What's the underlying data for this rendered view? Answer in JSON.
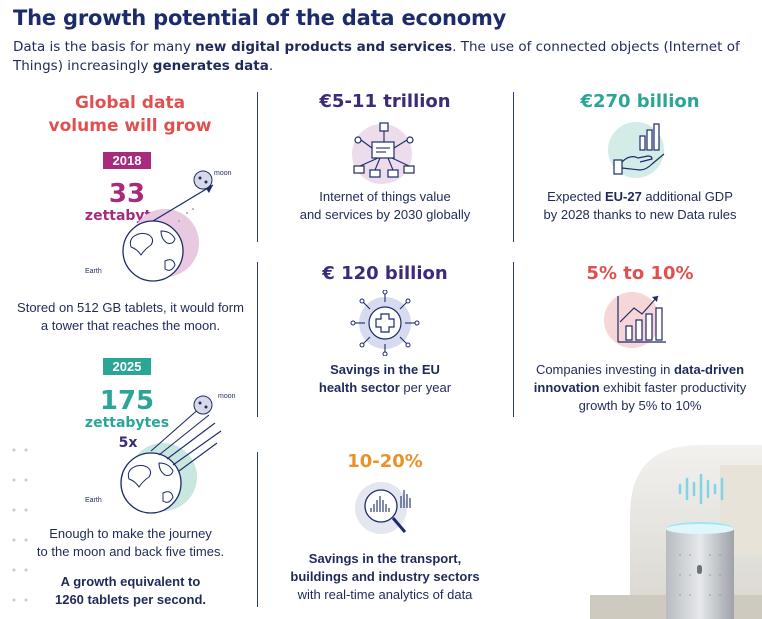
{
  "header": {
    "title": "The growth potential of the data economy",
    "intro_part1": "Data is the basis for many ",
    "intro_bold1": "new digital products and services",
    "intro_part2": ". The use of connected objects (Internet of Things) increasingly ",
    "intro_bold2": "generates data",
    "intro_part3": "."
  },
  "left": {
    "heading_line1": "Global data",
    "heading_line2": "volume will grow",
    "year1": "2018",
    "value1_number": "33",
    "value1_unit": "zettabytes",
    "moon_label": "moon",
    "earth_label": "Earth",
    "desc1_line1": "Stored on 512 GB tablets, it would form",
    "desc1_line2": "a tower that reaches the moon.",
    "year2": "2025",
    "value2_number": "175",
    "value2_unit": "zettabytes",
    "multiplier": "5x",
    "desc2_line1": "Enough to make the journey",
    "desc2_line2": "to the moon and back five times.",
    "desc3_line1": "A growth equivalent to",
    "desc3_line2": "1260 tablets per second."
  },
  "stats": [
    {
      "headline": "€5-11 trillion",
      "icon": "network-icon",
      "line1": "Internet of things value",
      "line2": "and services by 2030 globally"
    },
    {
      "headline": "€270 billion",
      "icon": "growth-hand-icon",
      "line1_pre": "Expected ",
      "line1_bold": "EU-27",
      "line1_post": " additional GDP",
      "line2": "by 2028 thanks to new Data rules"
    },
    {
      "headline": "€ 120 billion",
      "icon": "health-cross-icon",
      "line1_bold": "Savings in the EU",
      "line2_bold": "health sector",
      "line2_post": " per year"
    },
    {
      "headline": "5% to 10%",
      "icon": "bar-chart-up-icon",
      "line1_pre": "Companies investing in ",
      "line1_bold": "data-driven",
      "line2_bold": "innovation",
      "line2_post": " exhibit faster productivity",
      "line3": "growth by 5% to 10%"
    },
    {
      "headline": "10-20%",
      "icon": "magnifier-analytics-icon",
      "line1_bold": "Savings in the transport,",
      "line2_bold": "buildings and industry sectors",
      "line3": "with real-time analytics of data"
    }
  ],
  "colors": {
    "navy": "#1c2b6b",
    "purple": "#3d2a7a",
    "teal": "#2aa596",
    "red": "#e05050",
    "orange": "#e8922a",
    "magenta": "#a72a7e"
  }
}
